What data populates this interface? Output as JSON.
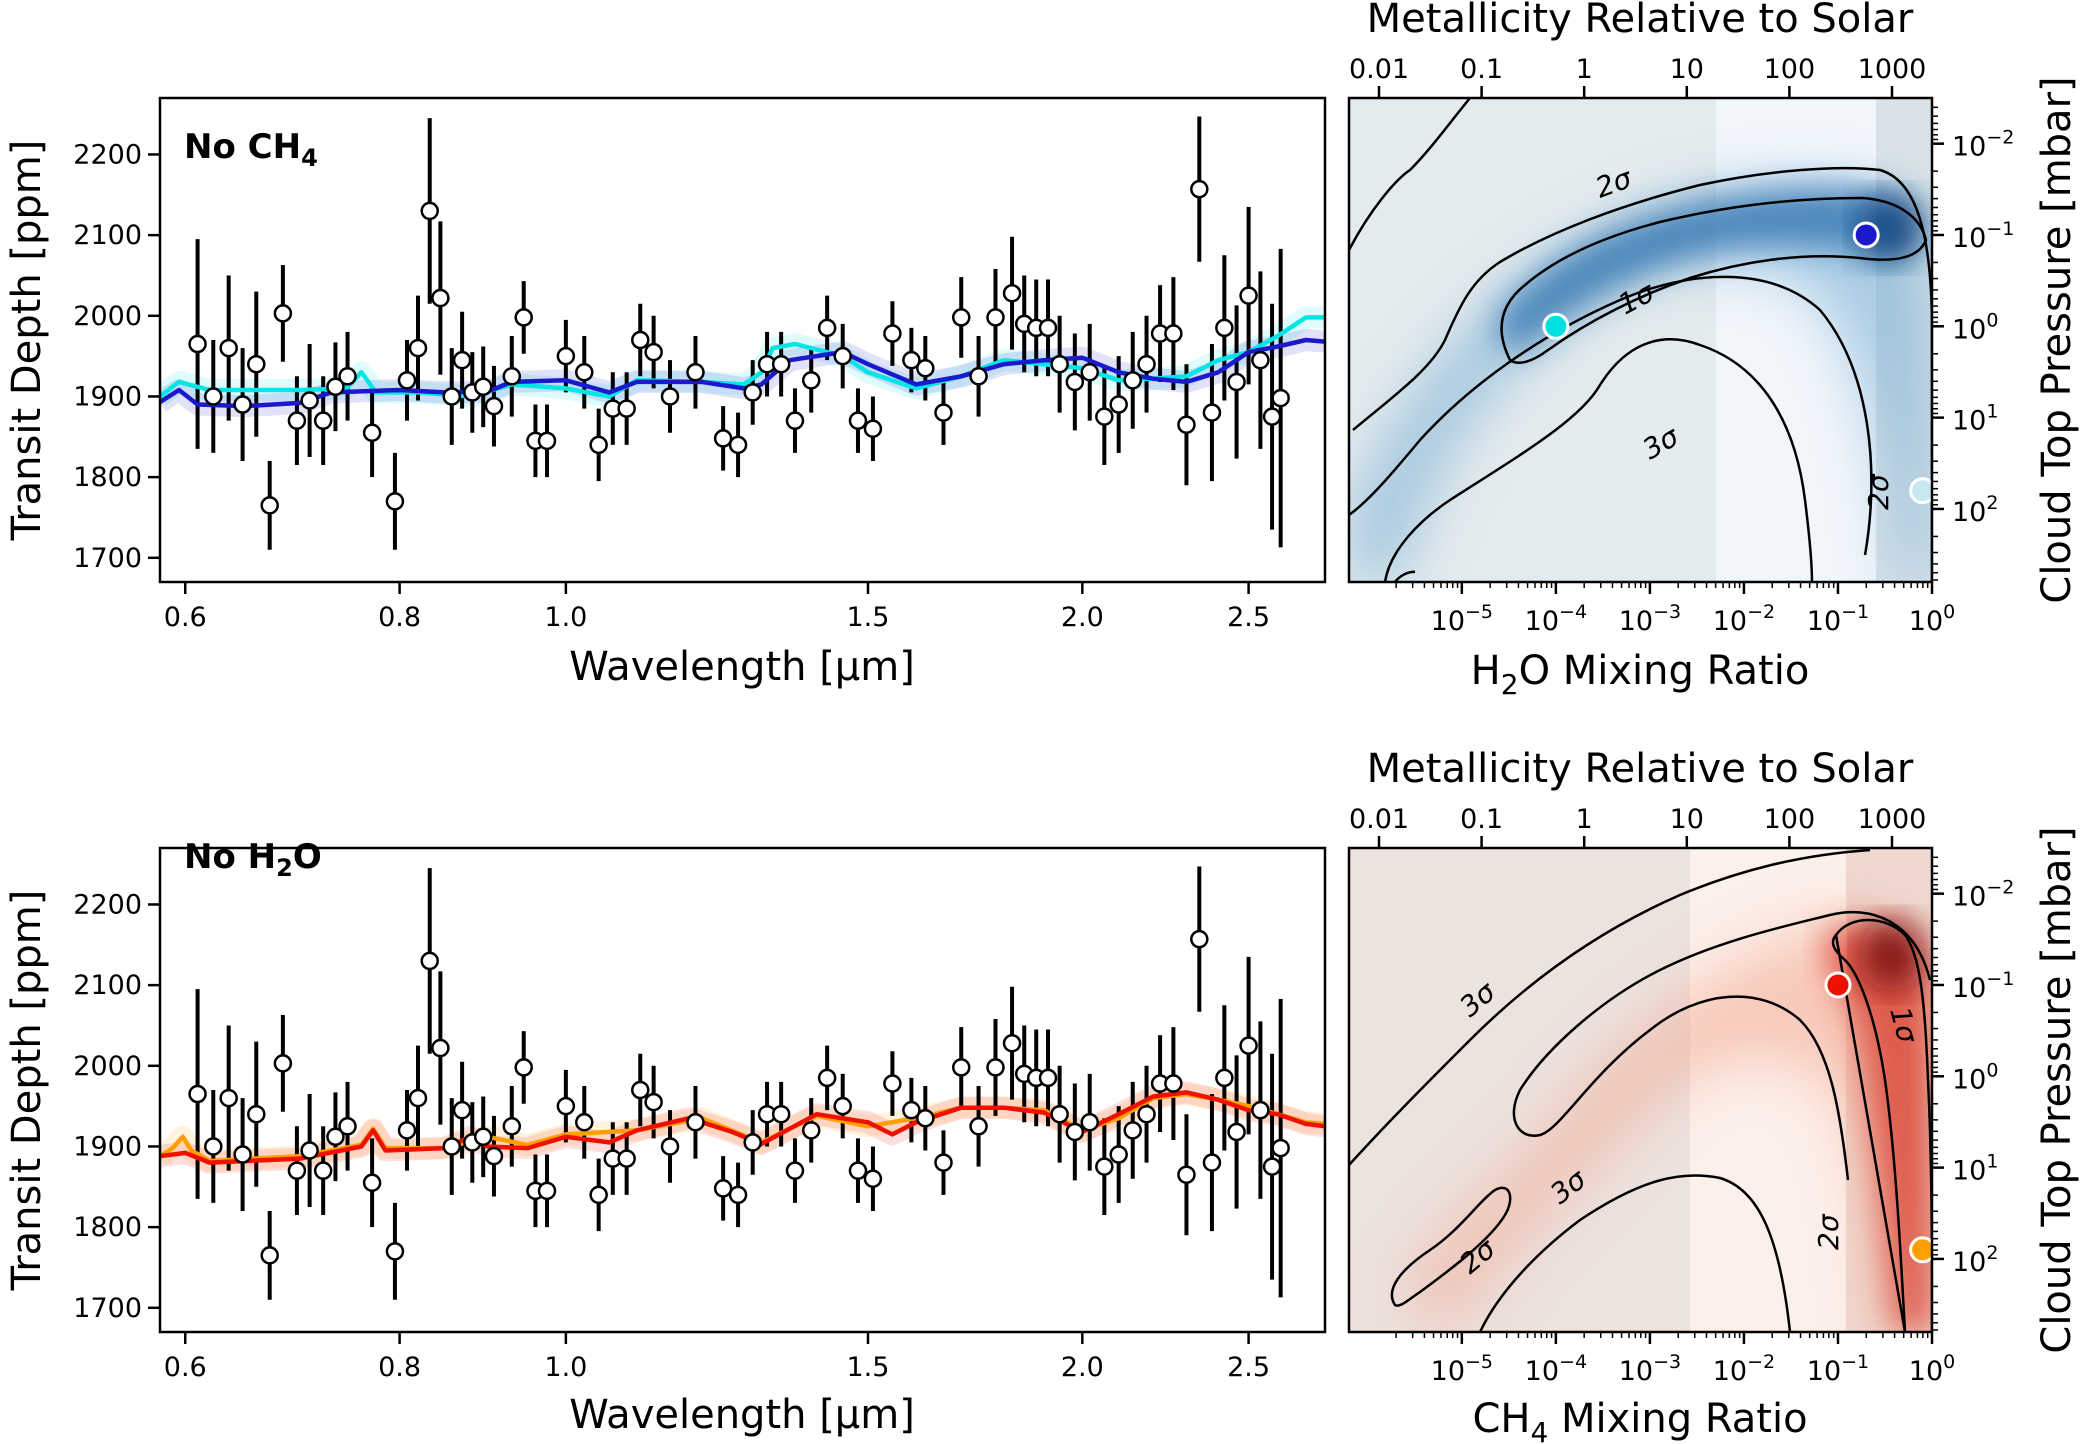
{
  "chart_data": [
    {
      "type": "scatter",
      "panel_label": "No CH4",
      "panel_label_parts": [
        "No CH",
        "4"
      ],
      "xlabel": "Wavelength [μm]",
      "ylabel": "Transit Depth [ppm]",
      "xlim": [
        0.58,
        2.77
      ],
      "ylim": [
        1670,
        2270
      ],
      "x_scale": "log",
      "x_ticks": [
        0.6,
        0.8,
        1.0,
        1.5,
        2.0,
        2.5
      ],
      "x_tick_labels": [
        "0.6",
        "0.8",
        "1.0",
        "1.5",
        "2.0",
        "2.5"
      ],
      "y_ticks": [
        1700,
        1800,
        1900,
        2000,
        2100,
        2200
      ],
      "y_tick_labels": [
        "1700",
        "1800",
        "1900",
        "2000",
        "2100",
        "2200"
      ],
      "data_points": [
        {
          "x": 0.61,
          "y": 1965,
          "err": 130
        },
        {
          "x": 0.623,
          "y": 1900,
          "err": 70
        },
        {
          "x": 0.636,
          "y": 1960,
          "err": 90
        },
        {
          "x": 0.648,
          "y": 1890,
          "err": 70
        },
        {
          "x": 0.66,
          "y": 1940,
          "err": 90
        },
        {
          "x": 0.672,
          "y": 1765,
          "err": 55
        },
        {
          "x": 0.684,
          "y": 2003,
          "err": 60
        },
        {
          "x": 0.697,
          "y": 1870,
          "err": 55
        },
        {
          "x": 0.709,
          "y": 1895,
          "err": 70
        },
        {
          "x": 0.722,
          "y": 1870,
          "err": 55
        },
        {
          "x": 0.734,
          "y": 1912,
          "err": 55
        },
        {
          "x": 0.746,
          "y": 1925,
          "err": 55
        },
        {
          "x": 0.771,
          "y": 1855,
          "err": 55
        },
        {
          "x": 0.795,
          "y": 1770,
          "err": 60
        },
        {
          "x": 0.808,
          "y": 1920,
          "err": 50
        },
        {
          "x": 0.82,
          "y": 1960,
          "err": 65
        },
        {
          "x": 0.833,
          "y": 2130,
          "err": 115
        },
        {
          "x": 0.845,
          "y": 2022,
          "err": 95
        },
        {
          "x": 0.858,
          "y": 1900,
          "err": 60
        },
        {
          "x": 0.87,
          "y": 1945,
          "err": 60
        },
        {
          "x": 0.882,
          "y": 1905,
          "err": 50
        },
        {
          "x": 0.895,
          "y": 1912,
          "err": 50
        },
        {
          "x": 0.908,
          "y": 1888,
          "err": 50
        },
        {
          "x": 0.93,
          "y": 1925,
          "err": 50
        },
        {
          "x": 0.945,
          "y": 1998,
          "err": 45
        },
        {
          "x": 0.96,
          "y": 1845,
          "err": 45
        },
        {
          "x": 0.975,
          "y": 1845,
          "err": 45
        },
        {
          "x": 1.0,
          "y": 1950,
          "err": 45
        },
        {
          "x": 1.025,
          "y": 1930,
          "err": 45
        },
        {
          "x": 1.045,
          "y": 1840,
          "err": 45
        },
        {
          "x": 1.065,
          "y": 1885,
          "err": 45
        },
        {
          "x": 1.085,
          "y": 1885,
          "err": 45
        },
        {
          "x": 1.105,
          "y": 1970,
          "err": 45
        },
        {
          "x": 1.125,
          "y": 1955,
          "err": 45
        },
        {
          "x": 1.15,
          "y": 1900,
          "err": 45
        },
        {
          "x": 1.19,
          "y": 1930,
          "err": 45
        },
        {
          "x": 1.235,
          "y": 1848,
          "err": 40
        },
        {
          "x": 1.26,
          "y": 1840,
          "err": 40
        },
        {
          "x": 1.285,
          "y": 1905,
          "err": 40
        },
        {
          "x": 1.31,
          "y": 1940,
          "err": 40
        },
        {
          "x": 1.335,
          "y": 1940,
          "err": 40
        },
        {
          "x": 1.36,
          "y": 1870,
          "err": 40
        },
        {
          "x": 1.39,
          "y": 1920,
          "err": 40
        },
        {
          "x": 1.42,
          "y": 1985,
          "err": 40
        },
        {
          "x": 1.45,
          "y": 1950,
          "err": 40
        },
        {
          "x": 1.48,
          "y": 1870,
          "err": 40
        },
        {
          "x": 1.51,
          "y": 1860,
          "err": 40
        },
        {
          "x": 1.55,
          "y": 1978,
          "err": 40
        },
        {
          "x": 1.59,
          "y": 1945,
          "err": 40
        },
        {
          "x": 1.62,
          "y": 1935,
          "err": 40
        },
        {
          "x": 1.66,
          "y": 1880,
          "err": 40
        },
        {
          "x": 1.7,
          "y": 1998,
          "err": 50
        },
        {
          "x": 1.74,
          "y": 1925,
          "err": 50
        },
        {
          "x": 1.78,
          "y": 1998,
          "err": 60
        },
        {
          "x": 1.82,
          "y": 2028,
          "err": 70
        },
        {
          "x": 1.85,
          "y": 1990,
          "err": 60
        },
        {
          "x": 1.88,
          "y": 1985,
          "err": 60
        },
        {
          "x": 1.91,
          "y": 1985,
          "err": 60
        },
        {
          "x": 1.94,
          "y": 1940,
          "err": 60
        },
        {
          "x": 1.98,
          "y": 1918,
          "err": 60
        },
        {
          "x": 2.02,
          "y": 1930,
          "err": 60
        },
        {
          "x": 2.06,
          "y": 1875,
          "err": 60
        },
        {
          "x": 2.1,
          "y": 1890,
          "err": 60
        },
        {
          "x": 2.14,
          "y": 1920,
          "err": 60
        },
        {
          "x": 2.18,
          "y": 1940,
          "err": 60
        },
        {
          "x": 2.22,
          "y": 1978,
          "err": 60
        },
        {
          "x": 2.26,
          "y": 1978,
          "err": 70
        },
        {
          "x": 2.3,
          "y": 1865,
          "err": 75
        },
        {
          "x": 2.34,
          "y": 2157,
          "err": 90
        },
        {
          "x": 2.38,
          "y": 1880,
          "err": 85
        },
        {
          "x": 2.42,
          "y": 1985,
          "err": 90
        },
        {
          "x": 2.46,
          "y": 1918,
          "err": 95
        },
        {
          "x": 2.5,
          "y": 2025,
          "err": 110
        },
        {
          "x": 2.54,
          "y": 1945,
          "err": 110
        },
        {
          "x": 2.58,
          "y": 1875,
          "err": 140
        },
        {
          "x": 2.61,
          "y": 1898,
          "err": 185
        }
      ],
      "series": [
        {
          "color": "#00e5e5",
          "x": [
            0.58,
            0.595,
            0.62,
            0.7,
            0.745,
            0.76,
            0.775,
            0.82,
            0.88,
            0.93,
            1.0,
            1.06,
            1.1,
            1.2,
            1.27,
            1.3,
            1.32,
            1.36,
            1.45,
            1.5,
            1.6,
            1.7,
            1.8,
            1.9,
            2.0,
            2.1,
            2.2,
            2.3,
            2.4,
            2.5,
            2.6,
            2.7,
            2.77
          ],
          "y": [
            1900,
            1918,
            1908,
            1908,
            1910,
            1930,
            1905,
            1905,
            1900,
            1915,
            1910,
            1900,
            1920,
            1918,
            1915,
            1930,
            1960,
            1965,
            1950,
            1930,
            1910,
            1925,
            1945,
            1940,
            1935,
            1920,
            1922,
            1925,
            1945,
            1955,
            1975,
            1998,
            1998
          ]
        },
        {
          "color": "#1a1acc",
          "x": [
            0.58,
            0.595,
            0.61,
            0.65,
            0.7,
            0.73,
            0.8,
            0.85,
            0.9,
            0.93,
            1.0,
            1.06,
            1.1,
            1.2,
            1.27,
            1.3,
            1.35,
            1.45,
            1.5,
            1.6,
            1.7,
            1.8,
            1.9,
            2.0,
            2.1,
            2.2,
            2.3,
            2.4,
            2.5,
            2.6,
            2.7,
            2.77
          ],
          "y": [
            1893,
            1908,
            1890,
            1888,
            1892,
            1905,
            1908,
            1905,
            1906,
            1918,
            1920,
            1905,
            1918,
            1918,
            1910,
            1915,
            1945,
            1955,
            1940,
            1915,
            1925,
            1940,
            1945,
            1948,
            1930,
            1922,
            1918,
            1930,
            1955,
            1962,
            1970,
            1968
          ]
        }
      ]
    },
    {
      "type": "heatmap",
      "colormap": "Blues",
      "xlabel": "H2O Mixing Ratio",
      "xlabel_parts": [
        "H",
        "2",
        "O Mixing Ratio"
      ],
      "ylabel": "Cloud Top Pressure [mbar]",
      "top_xlabel": "Metallicity Relative to Solar",
      "x_scale": "log",
      "y_scale": "log",
      "xlim_log10": [
        -6.2,
        0
      ],
      "ylim_log10_inverted": [
        2.8,
        -2.5
      ],
      "x_tick_base": "10",
      "x_tick_exponents": [
        "−5",
        "−4",
        "−3",
        "−2",
        "−1",
        "0"
      ],
      "y_tick_base": "10",
      "y_tick_exponents": [
        "−2",
        "−1",
        "0",
        "1",
        "2"
      ],
      "top_tick_labels": [
        "0.01",
        "0.1",
        "1",
        "10",
        "100",
        "1000"
      ],
      "contour_labels": [
        "2σ",
        "1σ",
        "3σ",
        "2σ"
      ],
      "markers": [
        {
          "label": "",
          "x_log10": -4.0,
          "y_log10": 0.0,
          "color": "#00e0e0"
        },
        {
          "label": "",
          "x_log10": -0.7,
          "y_log10": -1.0,
          "color": "#1a1acc"
        },
        {
          "label": "",
          "x_log10": -0.1,
          "y_log10": 1.8,
          "color": "#c8e8f0"
        }
      ]
    },
    {
      "type": "scatter",
      "panel_label": "No H2O",
      "panel_label_parts": [
        "No H",
        "2",
        "O"
      ],
      "xlabel": "Wavelength [μm]",
      "ylabel": "Transit Depth [ppm]",
      "xlim": [
        0.58,
        2.77
      ],
      "ylim": [
        1670,
        2270
      ],
      "x_scale": "log",
      "x_ticks": [
        0.6,
        0.8,
        1.0,
        1.5,
        2.0,
        2.5
      ],
      "x_tick_labels": [
        "0.6",
        "0.8",
        "1.0",
        "1.5",
        "2.0",
        "2.5"
      ],
      "y_ticks": [
        1700,
        1800,
        1900,
        2000,
        2100,
        2200
      ],
      "y_tick_labels": [
        "1700",
        "1800",
        "1900",
        "2000",
        "2100",
        "2200"
      ],
      "series": [
        {
          "color": "#ffa000",
          "x": [
            0.58,
            0.59,
            0.598,
            0.605,
            0.62,
            0.7,
            0.76,
            0.772,
            0.785,
            0.85,
            0.9,
            0.95,
            1.0,
            1.1,
            1.2,
            1.3,
            1.4,
            1.5,
            1.6,
            1.7,
            1.8,
            1.9,
            2.0,
            2.1,
            2.2,
            2.3,
            2.4,
            2.5,
            2.6,
            2.7,
            2.77
          ],
          "y": [
            1888,
            1898,
            1912,
            1895,
            1882,
            1888,
            1902,
            1922,
            1898,
            1898,
            1912,
            1902,
            1915,
            1920,
            1935,
            1905,
            1938,
            1925,
            1935,
            1948,
            1948,
            1945,
            1920,
            1935,
            1960,
            1965,
            1958,
            1950,
            1940,
            1930,
            1928
          ]
        },
        {
          "color": "#ee1100",
          "x": [
            0.58,
            0.6,
            0.62,
            0.7,
            0.76,
            0.772,
            0.785,
            0.85,
            0.88,
            0.9,
            0.95,
            1.0,
            1.06,
            1.1,
            1.18,
            1.25,
            1.3,
            1.4,
            1.5,
            1.55,
            1.6,
            1.7,
            1.8,
            1.9,
            2.0,
            2.1,
            2.2,
            2.3,
            2.4,
            2.5,
            2.6,
            2.7,
            2.77
          ],
          "y": [
            1888,
            1892,
            1880,
            1885,
            1900,
            1920,
            1895,
            1898,
            1912,
            1900,
            1898,
            1912,
            1905,
            1920,
            1935,
            1918,
            1903,
            1940,
            1930,
            1915,
            1930,
            1948,
            1948,
            1942,
            1918,
            1940,
            1962,
            1967,
            1958,
            1945,
            1940,
            1928,
            1925
          ]
        }
      ]
    },
    {
      "type": "heatmap",
      "colormap": "Reds",
      "xlabel": "CH4 Mixing Ratio",
      "xlabel_parts": [
        "CH",
        "4",
        " Mixing Ratio"
      ],
      "ylabel": "Cloud Top Pressure [mbar]",
      "top_xlabel": "Metallicity Relative to Solar",
      "x_scale": "log",
      "y_scale": "log",
      "xlim_log10": [
        -6.2,
        0
      ],
      "ylim_log10_inverted": [
        2.8,
        -2.5
      ],
      "x_tick_base": "10",
      "x_tick_exponents": [
        "−5",
        "−4",
        "−3",
        "−2",
        "−1",
        "0"
      ],
      "y_tick_base": "10",
      "y_tick_exponents": [
        "−2",
        "−1",
        "0",
        "1",
        "2"
      ],
      "top_tick_labels": [
        "0.01",
        "0.1",
        "1",
        "10",
        "100",
        "1000"
      ],
      "contour_labels": [
        "3σ",
        "1σ",
        "3σ",
        "2σ",
        "2σ"
      ],
      "markers": [
        {
          "label": "",
          "x_log10": -1.0,
          "y_log10": -1.0,
          "color": "#ee1100"
        },
        {
          "label": "",
          "x_log10": -0.1,
          "y_log10": 1.9,
          "color": "#ffa000"
        }
      ]
    }
  ]
}
